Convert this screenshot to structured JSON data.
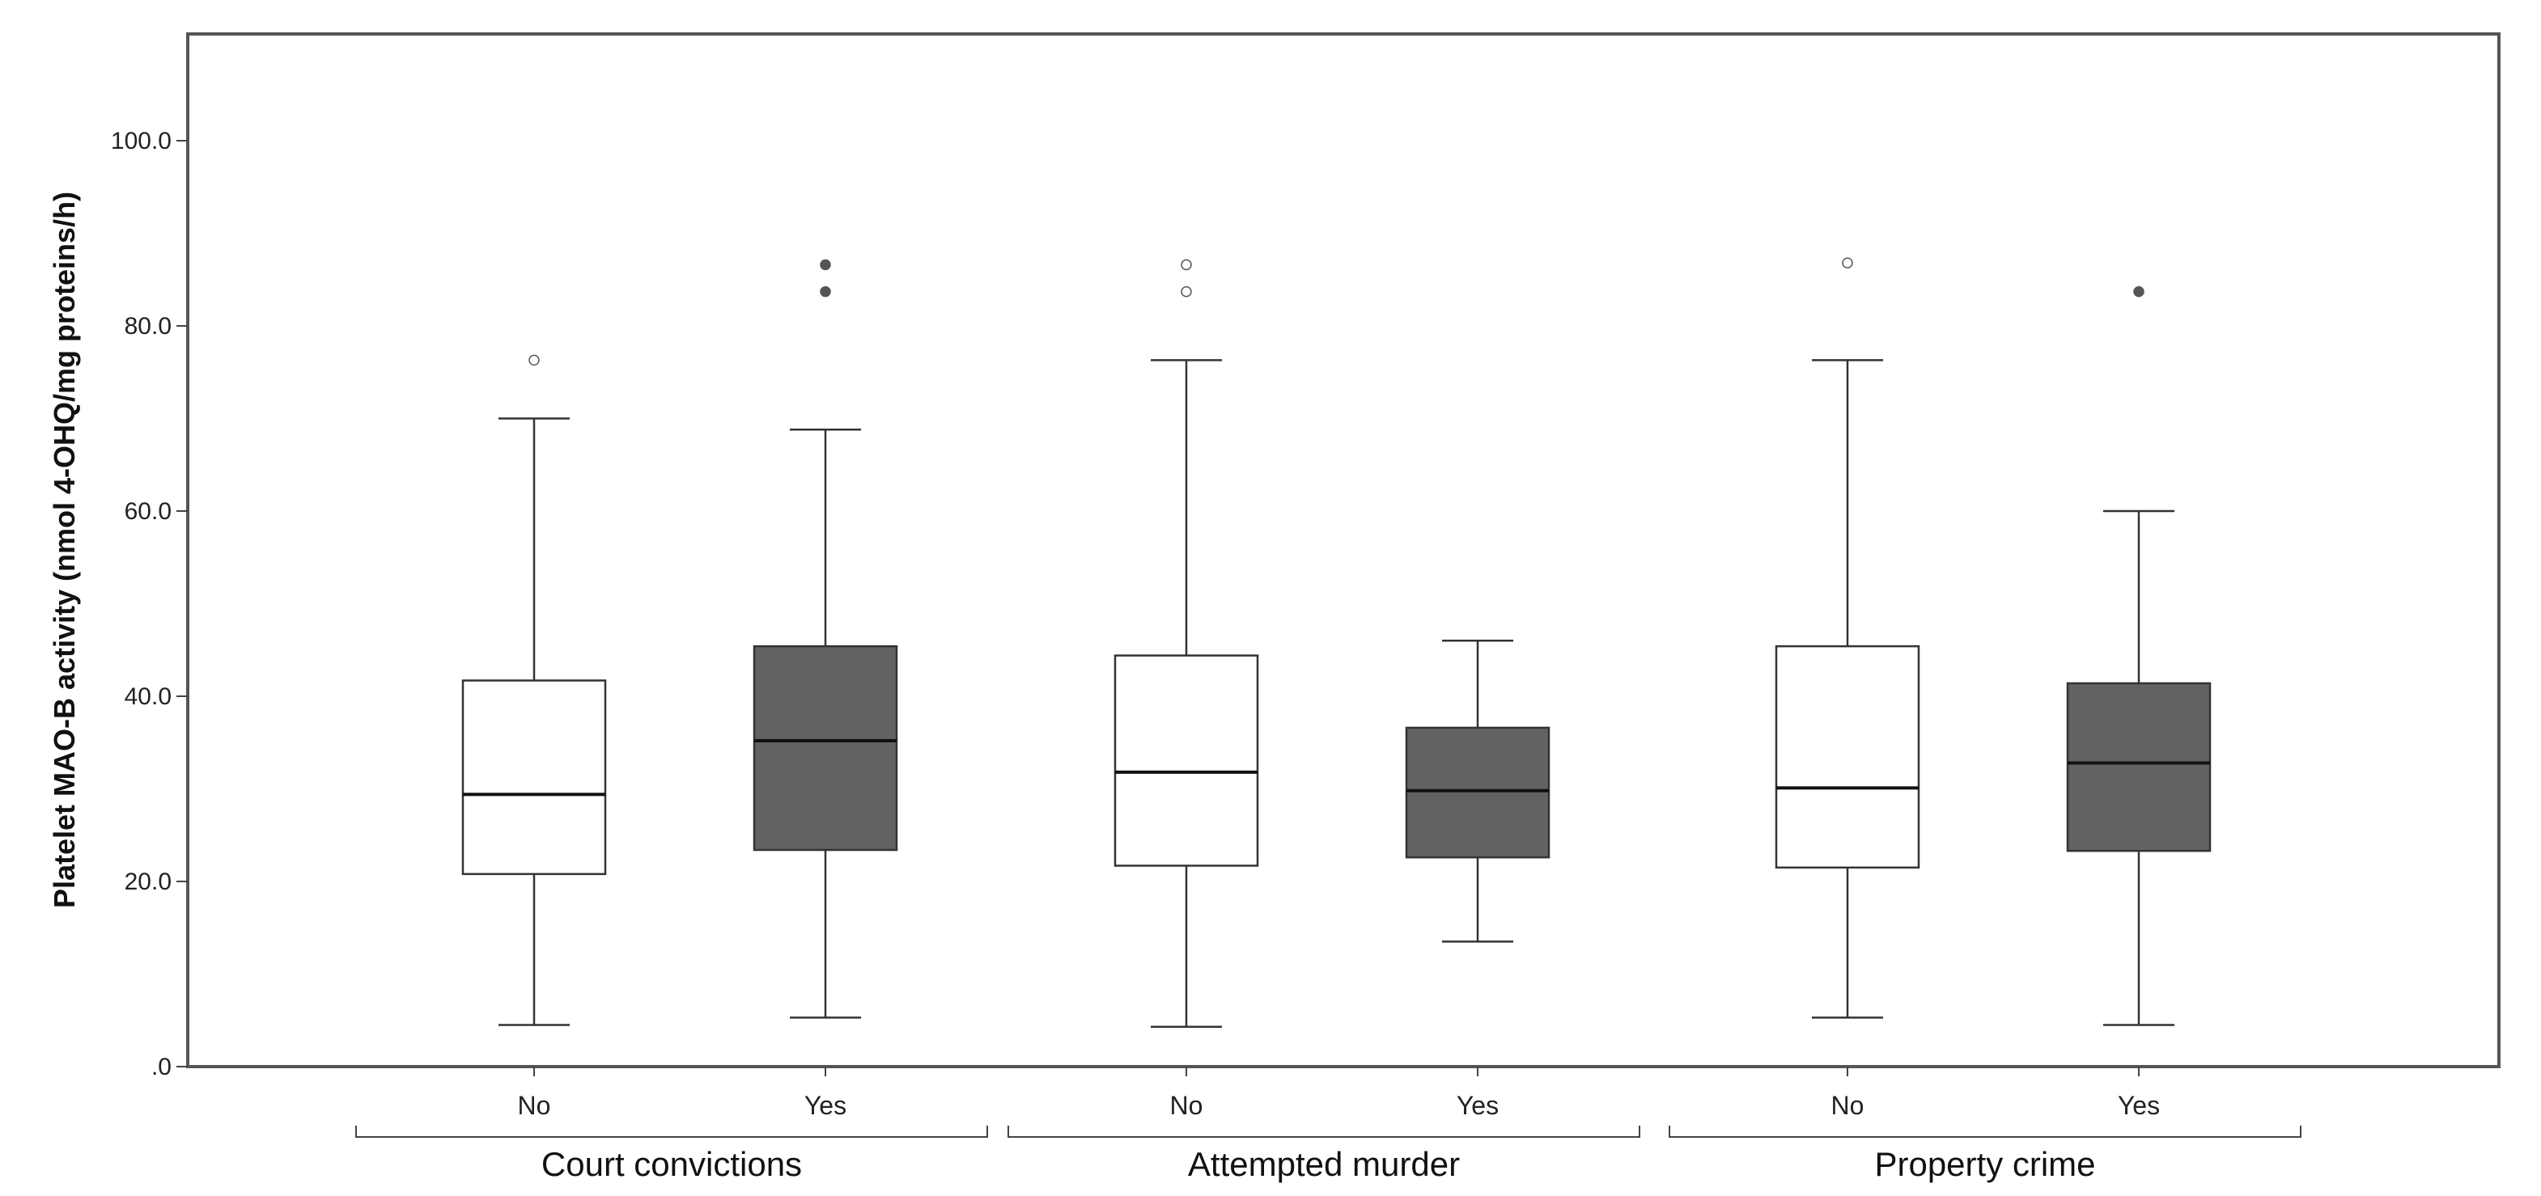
{
  "chart_data": {
    "type": "boxplot",
    "title": "",
    "ylabel": "Platelet MAO-B activity (nmol 4-OHQ/mg proteins/h)",
    "xlabel": "",
    "ylim": [
      0,
      110
    ],
    "yticks": [
      0,
      20,
      40,
      60,
      80,
      100
    ],
    "ytick_labels": [
      ".0",
      "20.0",
      "40.0",
      "60.0",
      "80.0",
      "100.0"
    ],
    "colors": {
      "no": "#ffffff",
      "yes": "#626262",
      "outline": "#333333"
    },
    "groups": [
      {
        "label": "Court convictions",
        "boxes": [
          {
            "category": "No",
            "whisker_low": 4.5,
            "q1": 20.8,
            "median": 29.4,
            "q3": 41.7,
            "whisker_high": 70.0,
            "outliers": [
              76.3
            ],
            "fill": "no"
          },
          {
            "category": "Yes",
            "whisker_low": 5.3,
            "q1": 23.4,
            "median": 35.2,
            "q3": 45.4,
            "whisker_high": 68.8,
            "outliers": [
              83.7,
              86.6
            ],
            "fill": "yes"
          }
        ]
      },
      {
        "label": "Attempted murder",
        "boxes": [
          {
            "category": "No",
            "whisker_low": 4.3,
            "q1": 21.7,
            "median": 31.8,
            "q3": 44.4,
            "whisker_high": 76.3,
            "outliers": [
              83.7,
              86.6
            ],
            "fill": "no"
          },
          {
            "category": "Yes",
            "whisker_low": 13.5,
            "q1": 22.6,
            "median": 29.8,
            "q3": 36.6,
            "whisker_high": 46.0,
            "outliers": [],
            "fill": "yes"
          }
        ]
      },
      {
        "label": "Property crime",
        "boxes": [
          {
            "category": "No",
            "whisker_low": 5.3,
            "q1": 21.5,
            "median": 30.1,
            "q3": 45.4,
            "whisker_high": 76.3,
            "outliers": [
              86.8
            ],
            "fill": "no"
          },
          {
            "category": "Yes",
            "whisker_low": 4.5,
            "q1": 23.3,
            "median": 32.8,
            "q3": 41.4,
            "whisker_high": 60.0,
            "outliers": [
              83.7
            ],
            "fill": "yes"
          }
        ]
      }
    ]
  }
}
